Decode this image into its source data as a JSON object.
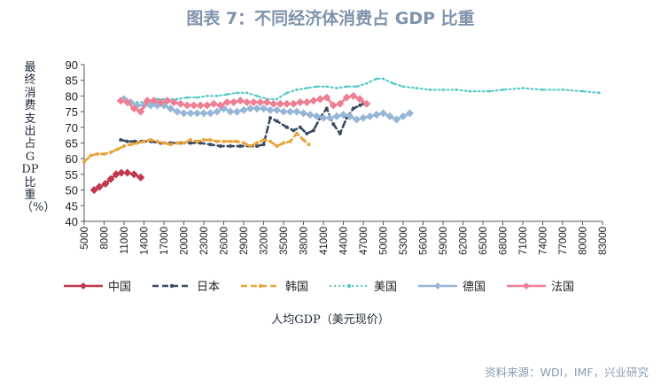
{
  "title": "图表 7：不同经济体消费占 GDP 比重",
  "source": "资料来源：WDI，IMF，兴业研究",
  "chart_data": {
    "type": "line",
    "xlabel": "人均GDP（美元现价）",
    "ylabel": "最终消费支出占GDP比重（%）",
    "xlim": [
      5000,
      83000
    ],
    "ylim": [
      40,
      90
    ],
    "x_ticks": [
      "5000",
      "8000",
      "11000",
      "14000",
      "17000",
      "20000",
      "23000",
      "26000",
      "29000",
      "32000",
      "35000",
      "38000",
      "41000",
      "44000",
      "47000",
      "50000",
      "53000",
      "56000",
      "59000",
      "62000",
      "65000",
      "68000",
      "71000",
      "74000",
      "77000",
      "80000",
      "83000"
    ],
    "y_ticks": [
      "40",
      "45",
      "50",
      "55",
      "60",
      "65",
      "70",
      "75",
      "80",
      "85",
      "90"
    ],
    "grid": false,
    "legend_position": "bottom",
    "series": [
      {
        "name": "中国",
        "color": "#c0394e",
        "style": "solid",
        "points": [
          [
            6500,
            50
          ],
          [
            7300,
            51
          ],
          [
            8200,
            52
          ],
          [
            9000,
            53.5
          ],
          [
            9800,
            55
          ],
          [
            10600,
            55.5
          ],
          [
            11500,
            55.5
          ],
          [
            12500,
            55
          ],
          [
            13500,
            54
          ]
        ]
      },
      {
        "name": "日本",
        "color": "#3a4a63",
        "style": "dashed",
        "points": [
          [
            10500,
            66
          ],
          [
            11500,
            65.5
          ],
          [
            12600,
            65.5
          ],
          [
            13700,
            65.5
          ],
          [
            15000,
            65.5
          ],
          [
            16500,
            65
          ],
          [
            18000,
            65
          ],
          [
            19500,
            65
          ],
          [
            21000,
            65
          ],
          [
            22500,
            65
          ],
          [
            24000,
            64.5
          ],
          [
            25500,
            64
          ],
          [
            27000,
            64
          ],
          [
            28500,
            64
          ],
          [
            30000,
            64
          ],
          [
            31000,
            64
          ],
          [
            32000,
            64.5
          ],
          [
            33000,
            73
          ],
          [
            34000,
            72
          ],
          [
            35500,
            70
          ],
          [
            36500,
            69
          ],
          [
            37500,
            70
          ],
          [
            38500,
            68
          ],
          [
            39500,
            69
          ],
          [
            40500,
            73
          ],
          [
            41500,
            76
          ],
          [
            42500,
            71
          ],
          [
            43500,
            68
          ],
          [
            44500,
            73
          ],
          [
            45500,
            76
          ],
          [
            46500,
            77
          ],
          [
            47000,
            77.5
          ]
        ]
      },
      {
        "name": "韩国",
        "color": "#e8a33a",
        "style": "dashed",
        "points": [
          [
            5000,
            59
          ],
          [
            6000,
            61
          ],
          [
            7000,
            61.5
          ],
          [
            8000,
            61.5
          ],
          [
            9000,
            62
          ],
          [
            10000,
            63
          ],
          [
            11000,
            64
          ],
          [
            12000,
            64.5
          ],
          [
            13000,
            65
          ],
          [
            14000,
            65.5
          ],
          [
            15000,
            66
          ],
          [
            16000,
            65.5
          ],
          [
            17000,
            65
          ],
          [
            18000,
            64.5
          ],
          [
            19000,
            65
          ],
          [
            20000,
            65
          ],
          [
            21000,
            66
          ],
          [
            22000,
            65.5
          ],
          [
            23000,
            66
          ],
          [
            24000,
            66
          ],
          [
            25000,
            65.5
          ],
          [
            26000,
            65.5
          ],
          [
            27000,
            65.5
          ],
          [
            28000,
            65.5
          ],
          [
            29000,
            65
          ],
          [
            30000,
            64
          ],
          [
            31000,
            65
          ],
          [
            32000,
            66
          ],
          [
            33000,
            65.5
          ],
          [
            34000,
            64
          ],
          [
            35000,
            65
          ],
          [
            36000,
            65.5
          ],
          [
            37000,
            68
          ],
          [
            38000,
            66
          ],
          [
            38800,
            64.5
          ]
        ]
      },
      {
        "name": "美国",
        "color": "#4fc7c2",
        "style": "dotted",
        "points": [
          [
            11500,
            78
          ],
          [
            13000,
            78
          ],
          [
            14500,
            78
          ],
          [
            16000,
            79
          ],
          [
            17500,
            79
          ],
          [
            19000,
            79
          ],
          [
            20500,
            79.5
          ],
          [
            22000,
            79.5
          ],
          [
            23500,
            80
          ],
          [
            25000,
            80
          ],
          [
            26500,
            80.5
          ],
          [
            28000,
            81
          ],
          [
            29500,
            81
          ],
          [
            31000,
            80
          ],
          [
            32500,
            79
          ],
          [
            34000,
            79
          ],
          [
            35500,
            81
          ],
          [
            37000,
            82
          ],
          [
            38500,
            82.5
          ],
          [
            40000,
            83
          ],
          [
            41500,
            83
          ],
          [
            43000,
            82.5
          ],
          [
            44500,
            83
          ],
          [
            46000,
            83
          ],
          [
            47500,
            84
          ],
          [
            49000,
            85.5
          ],
          [
            50000,
            85.5
          ],
          [
            51500,
            84
          ],
          [
            53000,
            83
          ],
          [
            55000,
            82.5
          ],
          [
            57000,
            82
          ],
          [
            59000,
            82
          ],
          [
            61000,
            82
          ],
          [
            63000,
            81.5
          ],
          [
            66000,
            81.5
          ],
          [
            68000,
            82
          ],
          [
            71000,
            82.5
          ],
          [
            74000,
            82
          ],
          [
            77000,
            82
          ],
          [
            80000,
            81.5
          ],
          [
            82500,
            81
          ]
        ]
      },
      {
        "name": "德国",
        "color": "#97b6d6",
        "style": "solid",
        "points": [
          [
            11000,
            79
          ],
          [
            12000,
            78
          ],
          [
            13000,
            77
          ],
          [
            14000,
            77
          ],
          [
            15000,
            77
          ],
          [
            16000,
            77
          ],
          [
            17000,
            77
          ],
          [
            18000,
            76
          ],
          [
            19000,
            75
          ],
          [
            20000,
            74.5
          ],
          [
            21000,
            74.5
          ],
          [
            22000,
            74.5
          ],
          [
            23000,
            74.5
          ],
          [
            24000,
            74.5
          ],
          [
            25000,
            75
          ],
          [
            26000,
            76
          ],
          [
            27000,
            75
          ],
          [
            28000,
            75
          ],
          [
            29000,
            75.5
          ],
          [
            30000,
            76
          ],
          [
            31000,
            76
          ],
          [
            32000,
            76
          ],
          [
            33000,
            75.5
          ],
          [
            34000,
            75.5
          ],
          [
            35000,
            75
          ],
          [
            36000,
            75
          ],
          [
            37000,
            75
          ],
          [
            38000,
            74.5
          ],
          [
            39000,
            74
          ],
          [
            40000,
            73.5
          ],
          [
            41000,
            73
          ],
          [
            42000,
            73
          ],
          [
            43000,
            73.5
          ],
          [
            44000,
            74
          ],
          [
            45000,
            73.5
          ],
          [
            46000,
            72.5
          ],
          [
            47000,
            73
          ],
          [
            48000,
            73.5
          ],
          [
            49000,
            74
          ],
          [
            50000,
            74.5
          ],
          [
            51000,
            73.5
          ],
          [
            52000,
            72.5
          ],
          [
            53000,
            73.5
          ],
          [
            54000,
            74.5
          ]
        ]
      },
      {
        "name": "法国",
        "color": "#ee7f93",
        "style": "solid",
        "points": [
          [
            10500,
            78.5
          ],
          [
            11500,
            78
          ],
          [
            12500,
            76
          ],
          [
            13500,
            75
          ],
          [
            14500,
            78.5
          ],
          [
            15500,
            78.5
          ],
          [
            16500,
            78
          ],
          [
            17500,
            78.5
          ],
          [
            18500,
            78
          ],
          [
            19500,
            77.5
          ],
          [
            20500,
            77
          ],
          [
            21500,
            77
          ],
          [
            22500,
            77
          ],
          [
            23500,
            77
          ],
          [
            24500,
            77.5
          ],
          [
            25500,
            77
          ],
          [
            26500,
            78
          ],
          [
            27500,
            78
          ],
          [
            28500,
            78.5
          ],
          [
            29500,
            78
          ],
          [
            30500,
            78
          ],
          [
            31500,
            78
          ],
          [
            32500,
            78
          ],
          [
            33500,
            77.5
          ],
          [
            34500,
            77.5
          ],
          [
            35500,
            77.5
          ],
          [
            36500,
            77.5
          ],
          [
            37500,
            78
          ],
          [
            38500,
            78
          ],
          [
            39500,
            78.5
          ],
          [
            40500,
            79
          ],
          [
            41500,
            79.5
          ],
          [
            42500,
            77
          ],
          [
            43500,
            77.5
          ],
          [
            44500,
            79.5
          ],
          [
            45500,
            80
          ],
          [
            46500,
            79
          ],
          [
            47500,
            77.5
          ]
        ]
      }
    ]
  }
}
